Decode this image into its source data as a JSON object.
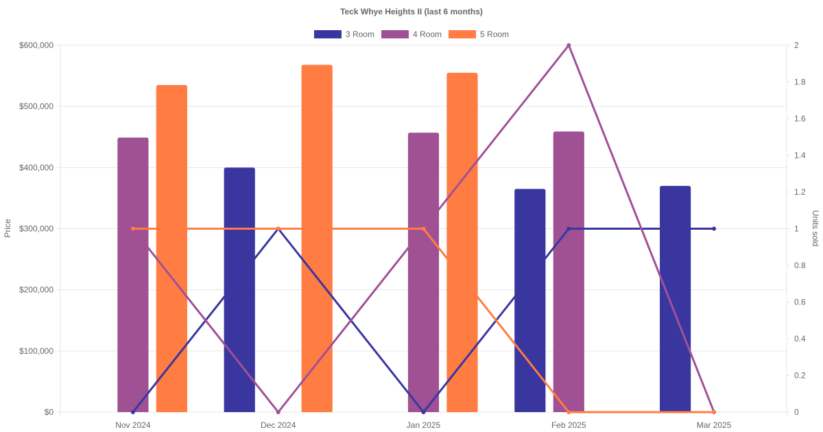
{
  "chart_data": {
    "type": "bar",
    "title": "Teck Whye Heights II (last 6 months)",
    "categories": [
      "Nov 2024",
      "Dec 2024",
      "Jan 2025",
      "Feb 2025",
      "Mar 2025"
    ],
    "ylabel": "Price",
    "y2label": "Units sold",
    "ylim": [
      0,
      600000
    ],
    "y2lim": [
      0,
      2
    ],
    "yticks": [
      "$0",
      "$100,000",
      "$200,000",
      "$300,000",
      "$400,000",
      "$500,000",
      "$600,000"
    ],
    "y2ticks": [
      "0",
      "0.2",
      "0.4",
      "0.6",
      "0.8",
      "1",
      "1.2",
      "1.4",
      "1.6",
      "1.8",
      "2"
    ],
    "legend_position": "top",
    "grid": true,
    "series": [
      {
        "name": "3 Room",
        "color": "#3a36a0",
        "prices": [
          null,
          400000,
          null,
          365000,
          370000
        ],
        "units": [
          0,
          1,
          0,
          1,
          1
        ]
      },
      {
        "name": "4 Room",
        "color": "#a05194",
        "prices": [
          449000,
          null,
          457000,
          459000,
          null
        ],
        "units": [
          1,
          0,
          1,
          2,
          0
        ]
      },
      {
        "name": "5 Room",
        "color": "#ff7c43",
        "prices": [
          535000,
          568000,
          555000,
          null,
          null
        ],
        "units": [
          1,
          1,
          1,
          0,
          0
        ]
      }
    ]
  }
}
